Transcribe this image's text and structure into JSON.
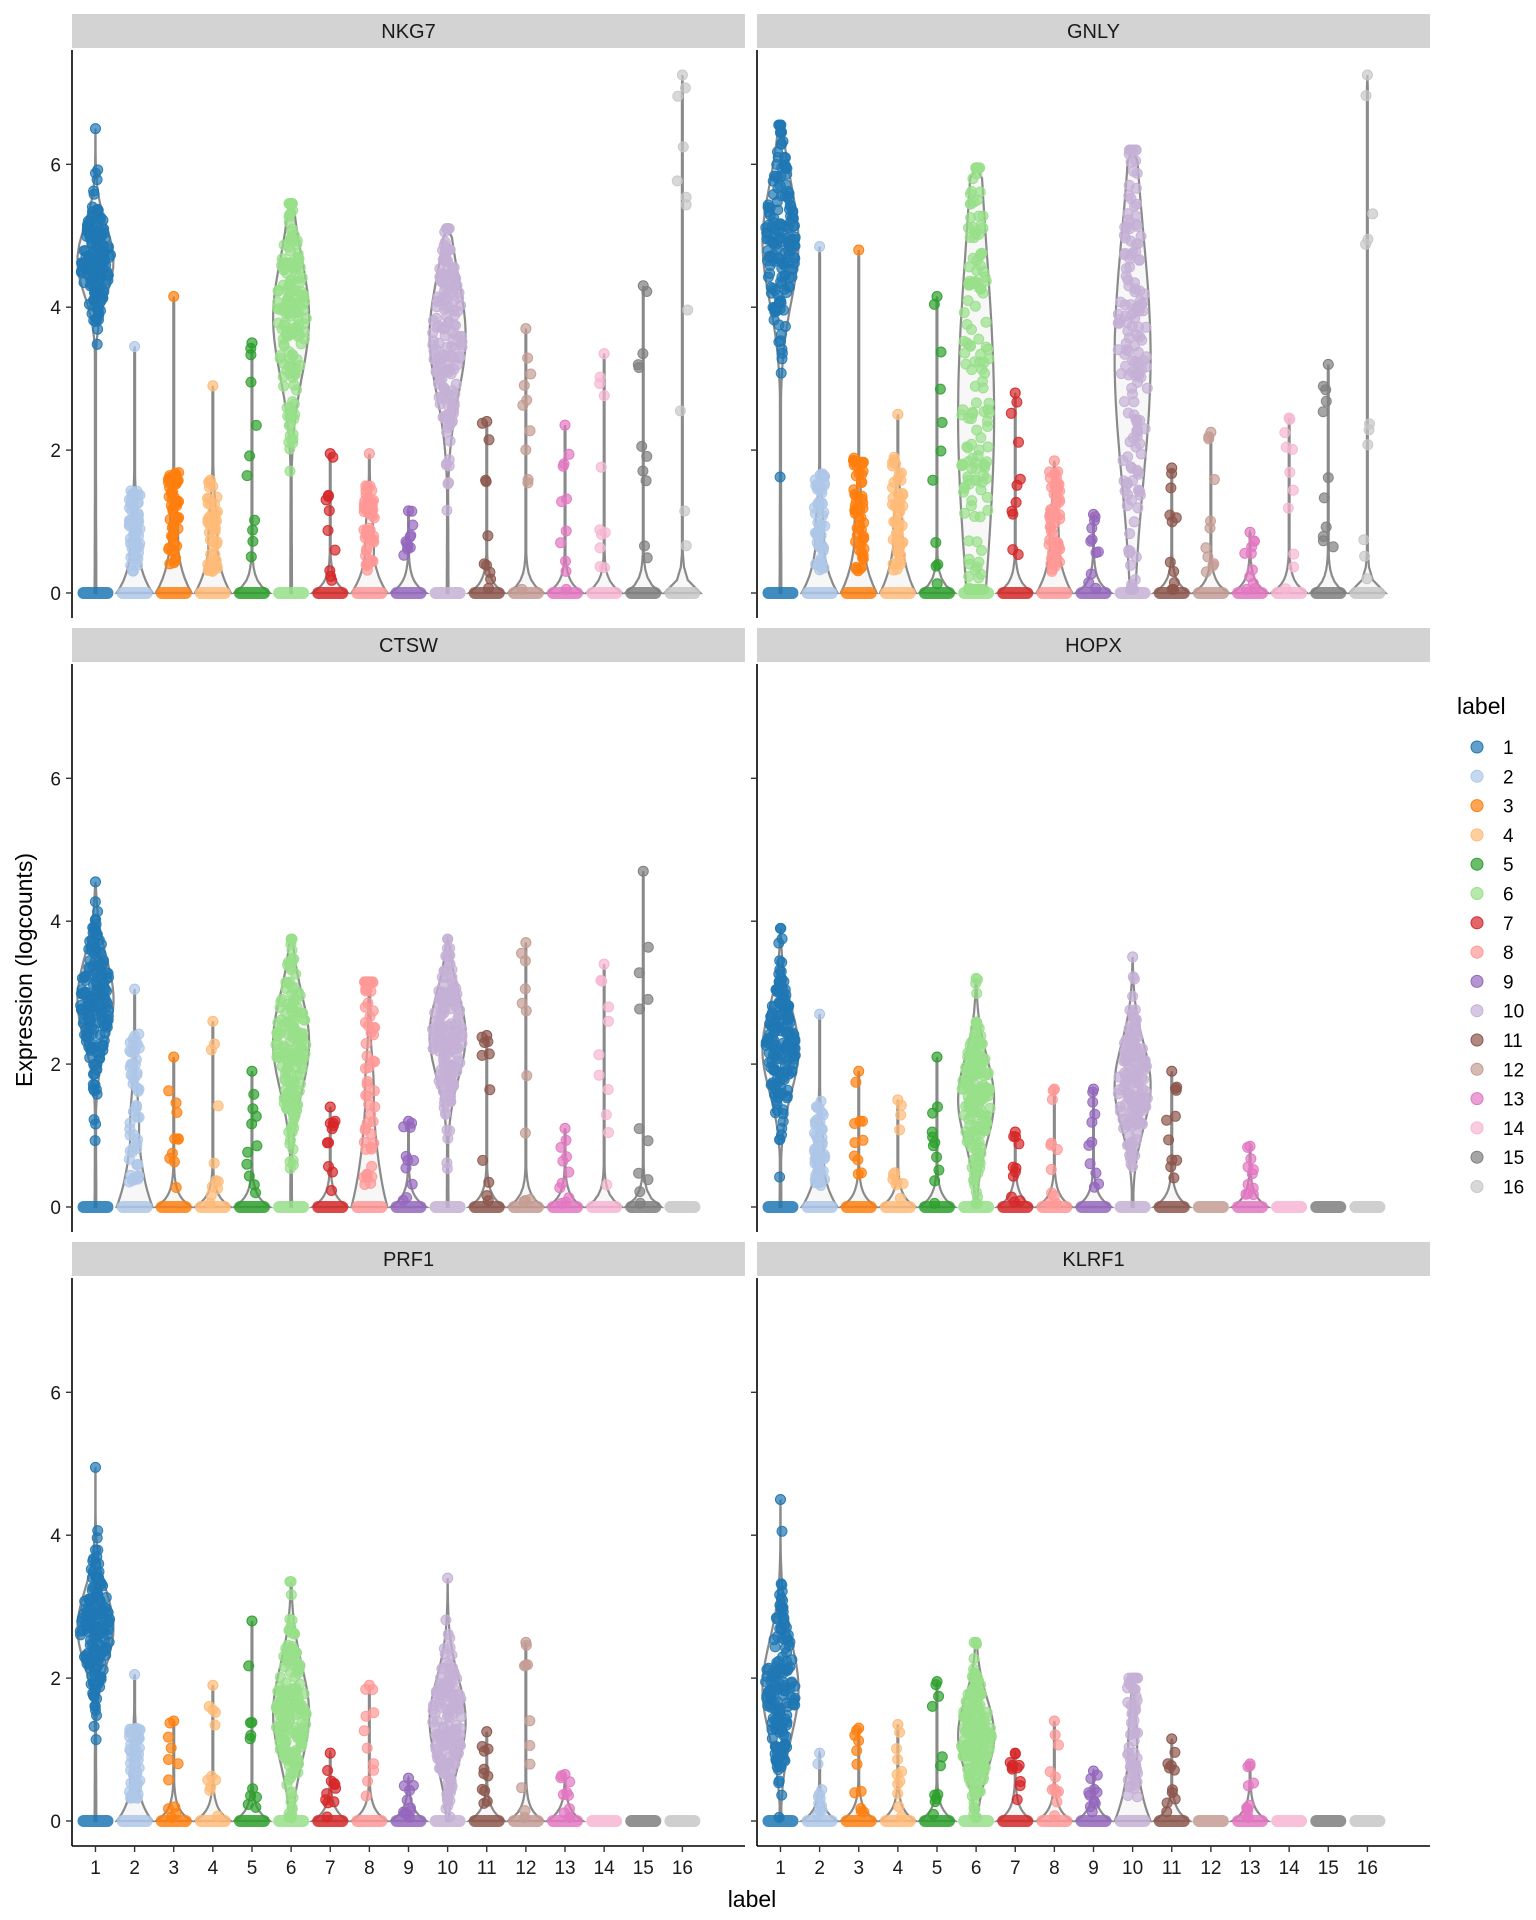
{
  "chart_data": {
    "type": "violin",
    "xlabel": "label",
    "ylabel": "Expression (logcounts)",
    "ylim": [
      -0.35,
      7.6
    ],
    "yticks": [
      0,
      2,
      4,
      6
    ],
    "categories": [
      "1",
      "2",
      "3",
      "4",
      "5",
      "6",
      "7",
      "8",
      "9",
      "10",
      "11",
      "12",
      "13",
      "14",
      "15",
      "16"
    ],
    "colors": [
      "#1f77b4",
      "#aec7e8",
      "#ff7f0e",
      "#ffbb78",
      "#2ca02c",
      "#98df8a",
      "#d62728",
      "#ff9896",
      "#9467bd",
      "#c5b0d5",
      "#8c564b",
      "#c49c94",
      "#e377c2",
      "#f7b6d2",
      "#7f7f7f",
      "#c7c7c7"
    ],
    "legend": {
      "title": "label",
      "position": "right",
      "entries": [
        "1",
        "2",
        "3",
        "4",
        "5",
        "6",
        "7",
        "8",
        "9",
        "10",
        "11",
        "12",
        "13",
        "14",
        "15",
        "16"
      ]
    },
    "panels": [
      {
        "gene": "NKG7",
        "medians": [
          4.65,
          0,
          0,
          0,
          0,
          3.85,
          0,
          0,
          0,
          3.6,
          0,
          0,
          0,
          0,
          0,
          0
        ],
        "q25": [
          4.3,
          0,
          0,
          0,
          0,
          3.2,
          0,
          0,
          0,
          3.0,
          0,
          0,
          0,
          0,
          0,
          0
        ],
        "q75": [
          4.95,
          0.6,
          0.7,
          0.7,
          0,
          4.3,
          0,
          0.6,
          0,
          4.1,
          0,
          0,
          0,
          0,
          0,
          0
        ],
        "max": [
          6.5,
          3.45,
          4.15,
          2.9,
          3.5,
          5.45,
          1.95,
          1.95,
          1.15,
          5.1,
          2.4,
          3.7,
          2.35,
          3.35,
          4.3,
          7.25
        ]
      },
      {
        "gene": "GNLY",
        "medians": [
          4.9,
          0,
          0,
          0,
          0,
          2.5,
          0,
          0,
          0,
          3.3,
          0,
          0,
          0,
          0,
          0,
          0
        ],
        "q25": [
          4.3,
          0,
          0,
          0,
          0,
          1.2,
          0,
          0,
          0,
          2.0,
          0,
          0,
          0,
          0,
          0,
          0
        ],
        "q75": [
          5.4,
          0.7,
          0.8,
          0.8,
          0,
          4.2,
          0,
          0.7,
          0,
          4.3,
          0,
          0,
          0,
          0,
          0,
          0
        ],
        "max": [
          6.55,
          4.85,
          4.8,
          2.5,
          4.15,
          5.95,
          2.8,
          1.85,
          1.1,
          6.2,
          1.75,
          2.25,
          0.85,
          2.45,
          3.2,
          7.25
        ]
      },
      {
        "gene": "CTSW",
        "medians": [
          2.9,
          0,
          0,
          0,
          0,
          2.3,
          0,
          0,
          0,
          2.4,
          0,
          0,
          0,
          0,
          0,
          0
        ],
        "q25": [
          2.5,
          0,
          0,
          0,
          0,
          1.8,
          0,
          0,
          0,
          2.0,
          0,
          0,
          0,
          0,
          0,
          0
        ],
        "q75": [
          3.3,
          1.1,
          0,
          0,
          0,
          2.7,
          0,
          1.6,
          0,
          2.8,
          0,
          0,
          0,
          0,
          0,
          0
        ],
        "max": [
          4.55,
          3.05,
          2.1,
          2.6,
          1.9,
          3.75,
          1.4,
          3.15,
          1.2,
          3.75,
          2.4,
          3.7,
          1.1,
          3.4,
          4.7,
          0
        ]
      },
      {
        "gene": "HOPX",
        "medians": [
          2.2,
          0,
          0,
          0,
          0,
          1.5,
          0,
          0,
          0,
          1.7,
          0,
          0,
          0,
          0,
          0,
          0
        ],
        "q25": [
          1.8,
          0,
          0,
          0,
          0,
          1.2,
          0,
          0,
          0,
          1.3,
          0,
          0,
          0,
          0,
          0,
          0
        ],
        "q75": [
          2.6,
          0.6,
          0,
          0,
          0,
          2.0,
          0,
          0,
          0,
          2.1,
          0,
          0,
          0,
          0,
          0,
          0
        ],
        "max": [
          3.9,
          2.7,
          1.9,
          1.5,
          2.1,
          3.2,
          1.05,
          1.65,
          1.65,
          3.5,
          1.9,
          0,
          0.85,
          0,
          0,
          0
        ]
      },
      {
        "gene": "PRF1",
        "medians": [
          2.7,
          0,
          0,
          0,
          0,
          1.5,
          0,
          0,
          0,
          1.4,
          0,
          0,
          0,
          0,
          0,
          0
        ],
        "q25": [
          2.3,
          0,
          0,
          0,
          0,
          1.1,
          0,
          0,
          0,
          1.1,
          0,
          0,
          0,
          0,
          0,
          0
        ],
        "q75": [
          3.0,
          0.5,
          0,
          0,
          0,
          2.0,
          0,
          0,
          0,
          1.9,
          0,
          0,
          0,
          0,
          0,
          0
        ],
        "max": [
          4.95,
          2.05,
          1.4,
          1.9,
          2.8,
          3.35,
          0.95,
          1.9,
          0.6,
          3.4,
          1.25,
          2.5,
          0.65,
          0,
          0,
          0
        ]
      },
      {
        "gene": "KLRF1",
        "medians": [
          1.85,
          0,
          0,
          0,
          0,
          1.2,
          0,
          0,
          0,
          0,
          0,
          0,
          0,
          0,
          0,
          0
        ],
        "q25": [
          1.4,
          0,
          0,
          0,
          0,
          0.9,
          0,
          0,
          0,
          0,
          0,
          0,
          0,
          0,
          0,
          0
        ],
        "q75": [
          2.3,
          0,
          0,
          0,
          0,
          1.6,
          0,
          0,
          0,
          1.0,
          0,
          0,
          0,
          0,
          0,
          0
        ],
        "max": [
          4.5,
          0.95,
          1.3,
          1.35,
          1.95,
          2.5,
          0.95,
          1.4,
          0.7,
          2.0,
          1.15,
          0,
          0.8,
          0,
          0,
          0
        ]
      }
    ]
  }
}
